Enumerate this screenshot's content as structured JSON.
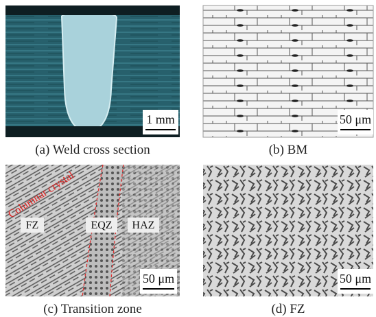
{
  "panels": [
    {
      "caption": "(a) Weld cross section",
      "scale_bar": "1 mm"
    },
    {
      "caption": "(b) BM",
      "scale_bar": "50 μm"
    },
    {
      "caption": "(c) Transition zone",
      "scale_bar": "50 μm",
      "labels": [
        "Columnar crystal",
        "FZ",
        "EQZ",
        "HAZ"
      ]
    },
    {
      "caption": "(d) FZ",
      "scale_bar": "50 μm"
    }
  ]
}
